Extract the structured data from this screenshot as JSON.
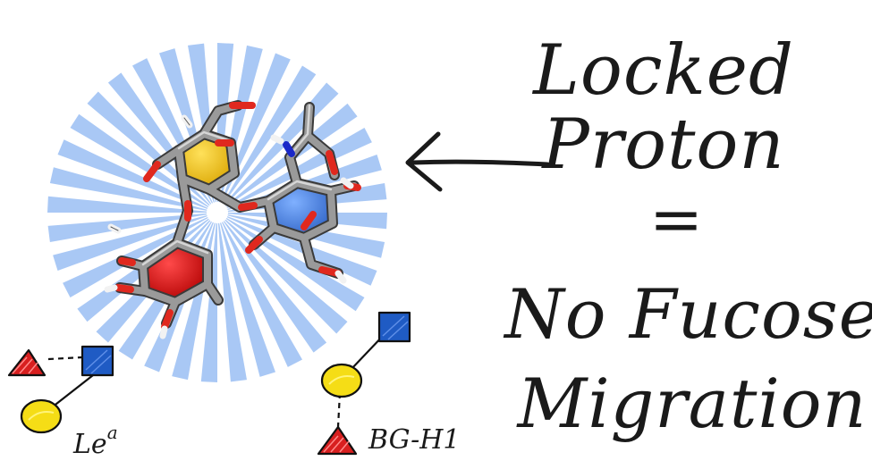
{
  "headline": {
    "line1": "Locked",
    "line2": "Proton",
    "line3": "=",
    "line4": "No Fucose",
    "line5": "Migration"
  },
  "glycans": [
    {
      "label_base": "Le",
      "label_sup": "a"
    },
    {
      "label": "BG-H1"
    }
  ],
  "colors": {
    "burst": "#a9c8f5",
    "galactose_yellow": "#f5cc00",
    "glcnac_blue": "#3a6fd0",
    "fucose_red": "#d81f1f",
    "stick_gray": "#8a8a8a",
    "oxygen_red": "#e0281e",
    "nitrogen_blue": "#1a28c8",
    "hydrogen_white": "#f4f4f4"
  }
}
